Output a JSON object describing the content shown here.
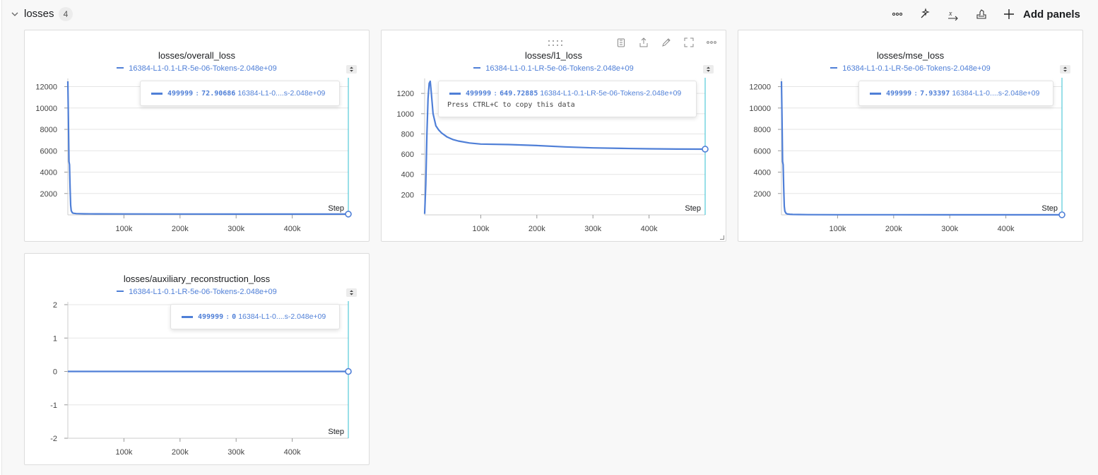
{
  "section": {
    "title": "losses",
    "count": "4",
    "add_panels_label": "Add panels"
  },
  "header_icons": [
    "more-options-icon",
    "magic-wand-icon",
    "x-axis-icon",
    "clean-icon"
  ],
  "colors": {
    "series": "#4f7fd7",
    "cursor": "#31bfd0",
    "grid": "#e5e5e5"
  },
  "run_name": "16384-L1-0.1-LR-5e-06-Tokens-2.048e+09",
  "panels": {
    "overall": {
      "title": "losses/overall_loss",
      "legend": "16384-L1-0.1-LR-5e-06-Tokens-2.048e+09",
      "tooltip": {
        "step": "499999",
        "value": "72.90686",
        "run": "16384-L1-0....s-2.048e+09"
      },
      "step_label": "Step"
    },
    "l1": {
      "title": "losses/l1_loss",
      "legend": "16384-L1-0.1-LR-5e-06-Tokens-2.048e+09",
      "tooltip": {
        "step": "499999",
        "value": "649.72885",
        "run": "16384-L1-0.1-LR-5e-06-Tokens-2.048e+09",
        "hint": "Press CTRL+C to copy this data"
      },
      "step_label": "Step"
    },
    "mse": {
      "title": "losses/mse_loss",
      "legend": "16384-L1-0.1-LR-5e-06-Tokens-2.048e+09",
      "tooltip": {
        "step": "499999",
        "value": "7.93397",
        "run": "16384-L1-0....s-2.048e+09"
      },
      "step_label": "Step"
    },
    "aux": {
      "title": "losses/auxiliary_reconstruction_loss",
      "legend": "16384-L1-0.1-LR-5e-06-Tokens-2.048e+09",
      "tooltip": {
        "step": "499999",
        "value": "0",
        "run": "16384-L1-0....s-2.048e+09"
      },
      "step_label": "Step"
    }
  },
  "chart_data": [
    {
      "type": "line",
      "title": "losses/overall_loss",
      "xlabel": "Step",
      "xlim": [
        0,
        500000
      ],
      "ylim": [
        0,
        12500
      ],
      "x_ticks": [
        100000,
        200000,
        300000,
        400000
      ],
      "x_tick_labels": [
        "100k",
        "200k",
        "300k",
        "400k"
      ],
      "y_ticks": [
        2000,
        4000,
        6000,
        8000,
        10000,
        12000
      ],
      "y_tick_labels": [
        "2000",
        "4000",
        "6000",
        "8000",
        "10000",
        "12000"
      ],
      "grid": true,
      "series": [
        {
          "name": "16384-L1-0.1-LR-5e-06-Tokens-2.048e+09",
          "x": [
            0,
            1000,
            2000,
            3000,
            4000,
            5000,
            6000,
            8000,
            10000,
            15000,
            20000,
            30000,
            50000,
            100000,
            200000,
            300000,
            400000,
            499999
          ],
          "y": [
            12500,
            9000,
            5000,
            4700,
            2500,
            900,
            400,
            200,
            150,
            120,
            110,
            100,
            90,
            85,
            80,
            76,
            74,
            72.90686
          ]
        }
      ]
    },
    {
      "type": "line",
      "title": "losses/l1_loss",
      "xlabel": "Step",
      "xlim": [
        0,
        500000
      ],
      "ylim": [
        0,
        1320
      ],
      "x_ticks": [
        100000,
        200000,
        300000,
        400000
      ],
      "x_tick_labels": [
        "100k",
        "200k",
        "300k",
        "400k"
      ],
      "y_ticks": [
        200,
        400,
        600,
        800,
        1000,
        1200
      ],
      "y_tick_labels": [
        "200",
        "400",
        "600",
        "800",
        "1000",
        "1200"
      ],
      "grid": true,
      "series": [
        {
          "name": "16384-L1-0.1-LR-5e-06-Tokens-2.048e+09",
          "x": [
            0,
            2000,
            4000,
            6000,
            8000,
            10000,
            12000,
            15000,
            20000,
            25000,
            30000,
            40000,
            50000,
            60000,
            80000,
            100000,
            150000,
            200000,
            250000,
            300000,
            350000,
            400000,
            450000,
            499999
          ],
          "y": [
            10,
            300,
            800,
            1150,
            1300,
            1320,
            1200,
            1000,
            880,
            840,
            810,
            770,
            745,
            730,
            710,
            700,
            695,
            685,
            672,
            662,
            657,
            653,
            650,
            649.72885
          ]
        }
      ]
    },
    {
      "type": "line",
      "title": "losses/mse_loss",
      "xlabel": "Step",
      "xlim": [
        0,
        500000
      ],
      "ylim": [
        0,
        12500
      ],
      "x_ticks": [
        100000,
        200000,
        300000,
        400000
      ],
      "x_tick_labels": [
        "100k",
        "200k",
        "300k",
        "400k"
      ],
      "y_ticks": [
        2000,
        4000,
        6000,
        8000,
        10000,
        12000
      ],
      "y_tick_labels": [
        "2000",
        "4000",
        "6000",
        "8000",
        "10000",
        "12000"
      ],
      "grid": true,
      "series": [
        {
          "name": "16384-L1-0.1-LR-5e-06-Tokens-2.048e+09",
          "x": [
            0,
            1000,
            2000,
            3000,
            4000,
            5000,
            6000,
            8000,
            10000,
            15000,
            20000,
            30000,
            50000,
            100000,
            200000,
            300000,
            400000,
            499999
          ],
          "y": [
            12500,
            9000,
            5000,
            4700,
            2500,
            800,
            350,
            150,
            90,
            60,
            40,
            30,
            20,
            14,
            10,
            9,
            8.3,
            7.93397
          ]
        }
      ]
    },
    {
      "type": "line",
      "title": "losses/auxiliary_reconstruction_loss",
      "xlabel": "Step",
      "xlim": [
        0,
        500000
      ],
      "ylim": [
        -2,
        2
      ],
      "x_ticks": [
        100000,
        200000,
        300000,
        400000
      ],
      "x_tick_labels": [
        "100k",
        "200k",
        "300k",
        "400k"
      ],
      "y_ticks": [
        -2,
        -1,
        0,
        1,
        2
      ],
      "y_tick_labels": [
        "-2",
        "-1",
        "0",
        "1",
        "2"
      ],
      "grid": true,
      "series": [
        {
          "name": "16384-L1-0.1-LR-5e-06-Tokens-2.048e+09",
          "x": [
            0,
            499999
          ],
          "y": [
            0,
            0
          ]
        }
      ]
    }
  ]
}
